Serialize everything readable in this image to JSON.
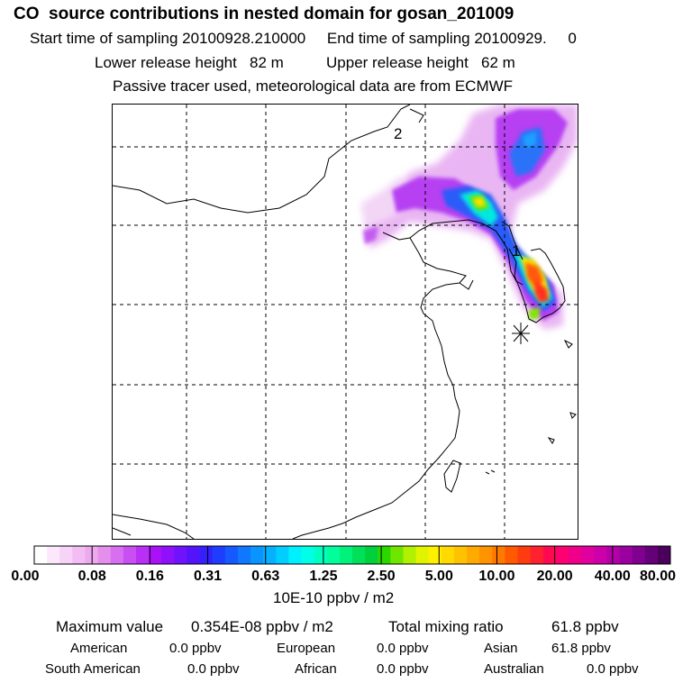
{
  "header": {
    "title": "CO  source contributions in nested domain for gosan_201009",
    "start_label": "Start time of sampling",
    "start_value": "20100928.210000",
    "end_label": "End time of sampling",
    "end_value": "20100929.",
    "end_extra": "0",
    "lower_label": "Lower release height",
    "lower_value": "82 m",
    "upper_label": "Upper release height",
    "upper_value": "62 m",
    "tracer_note": "Passive tracer used, meteorological data are from ECMWF"
  },
  "map": {
    "grid_labels": [
      "2",
      "1"
    ],
    "receptor_marker": "asterisk-icon"
  },
  "colorbar": {
    "ticks": [
      "0.00",
      "0.08",
      "0.16",
      "0.31",
      "0.63",
      "1.25",
      "2.50",
      "5.00",
      "10.00",
      "20.00",
      "40.00",
      "80.00"
    ],
    "unit": "10E-10 ppbv / m2",
    "colors": [
      "#ffffff",
      "#fbe9fb",
      "#f7d3f7",
      "#f2bdf3",
      "#eea8ef",
      "#e58fec",
      "#d76ff0",
      "#c94ff3",
      "#b92ff6",
      "#aa11f9",
      "#8f10fb",
      "#7112fc",
      "#5314fc",
      "#3420fd",
      "#1f3dff",
      "#165aff",
      "#1077ff",
      "#0a94ff",
      "#05b1ff",
      "#00ceff",
      "#00f0ff",
      "#00ffe6",
      "#00ffc0",
      "#00ff9a",
      "#00f27a",
      "#00e05a",
      "#00d03c",
      "#2ad800",
      "#6fe600",
      "#b0f000",
      "#e0f400",
      "#fff000",
      "#ffd900",
      "#ffc200",
      "#ffaa00",
      "#ff9200",
      "#ff7800",
      "#ff5a00",
      "#ff3c10",
      "#ff2030",
      "#ff0a50",
      "#ff0070",
      "#f0008a",
      "#e0009f",
      "#cc00aa",
      "#b400a8",
      "#9a009f",
      "#800090",
      "#660078",
      "#4c005e"
    ]
  },
  "stats": {
    "max_label": "Maximum value",
    "max_value": "0.354E-08 ppbv / m2",
    "total_label": "Total mixing ratio",
    "total_value": "61.8 ppbv",
    "regions": [
      {
        "name": "American",
        "value": "0.0 ppbv"
      },
      {
        "name": "European",
        "value": "0.0 ppbv"
      },
      {
        "name": "Asian",
        "value": "61.8 ppbv"
      },
      {
        "name": "South American",
        "value": "0.0 ppbv"
      },
      {
        "name": "African",
        "value": "0.0 ppbv"
      },
      {
        "name": "Australian",
        "value": "0.0 ppbv"
      }
    ]
  }
}
